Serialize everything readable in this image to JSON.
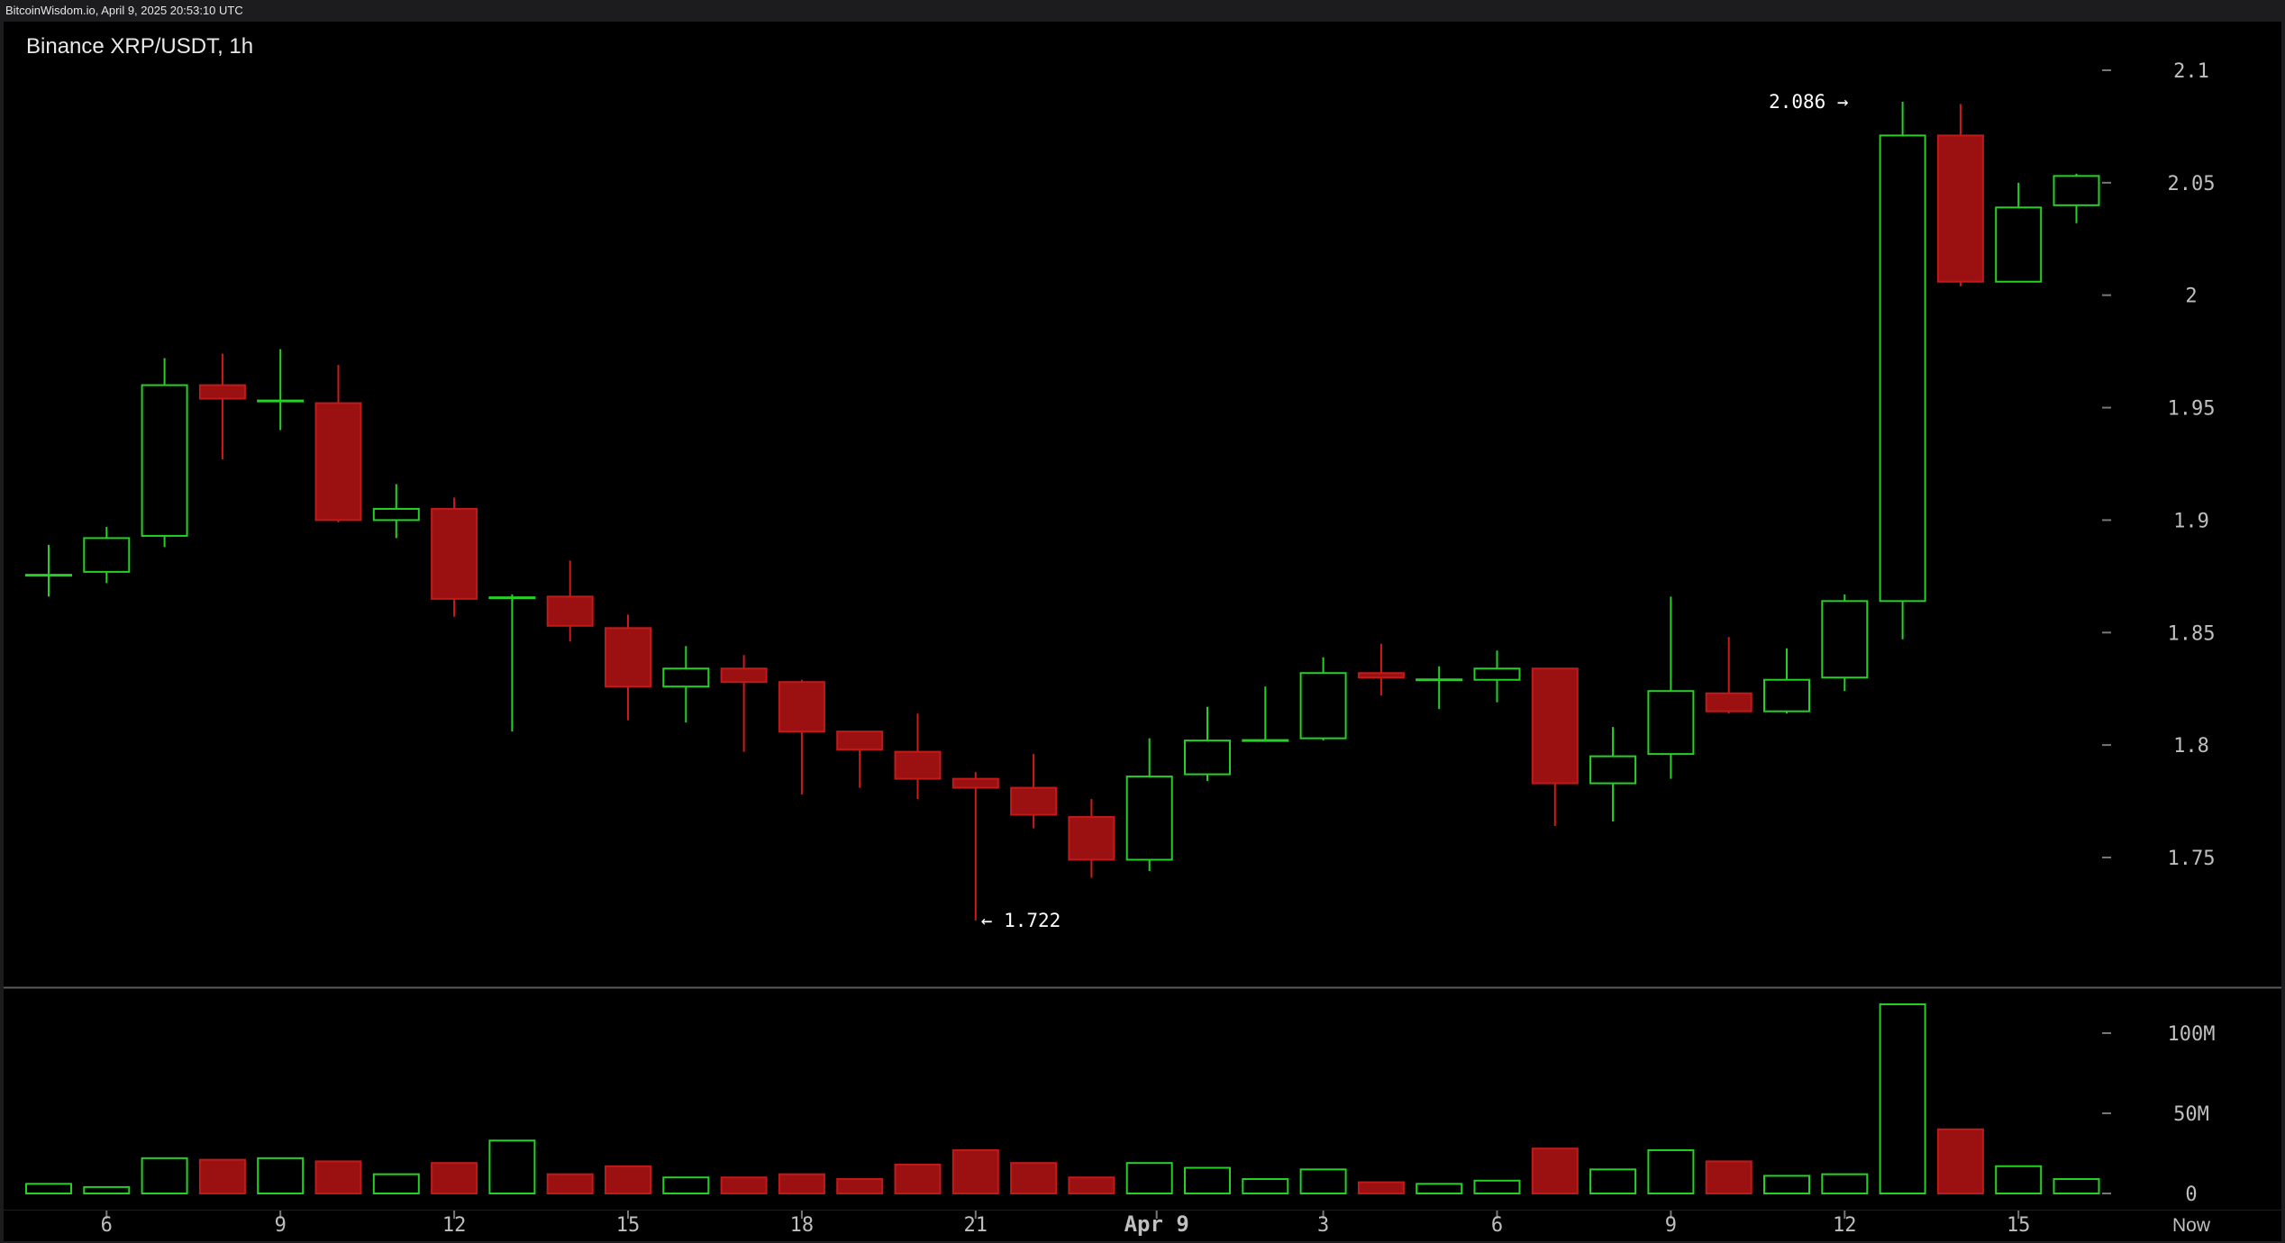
{
  "watermark": "BitcoinWisdom.io, April 9, 2025 20:53:10 UTC",
  "chart_data": {
    "type": "candlestick",
    "title": "Binance XRP/USDT, 1h",
    "price_axis": {
      "ticks": [
        "2.1",
        "2.05",
        "2",
        "1.95",
        "1.9",
        "1.85",
        "1.8",
        "1.75"
      ],
      "tick_values": [
        2.1,
        2.05,
        2.0,
        1.95,
        1.9,
        1.85,
        1.8,
        1.75
      ],
      "range": [
        1.67,
        2.125
      ]
    },
    "volume_axis": {
      "ticks": [
        "100M",
        "50M",
        "0"
      ],
      "tick_values": [
        100,
        50,
        0
      ],
      "unit": "M",
      "range": [
        0,
        120
      ]
    },
    "x_axis": {
      "labels": [
        {
          "label": "6",
          "index": 1
        },
        {
          "label": "9",
          "index": 4
        },
        {
          "label": "12",
          "index": 7
        },
        {
          "label": "15",
          "index": 10
        },
        {
          "label": "18",
          "index": 13
        },
        {
          "label": "21",
          "index": 16
        },
        {
          "label": "Apr 9",
          "index": 19,
          "bold": true
        },
        {
          "label": "3",
          "index": 22
        },
        {
          "label": "6",
          "index": 25
        },
        {
          "label": "9",
          "index": 28
        },
        {
          "label": "12",
          "index": 31
        },
        {
          "label": "15",
          "index": 34
        }
      ],
      "now_label": "Now"
    },
    "annotations": {
      "high": {
        "text": "2.086 →",
        "value": 2.086,
        "index": 32
      },
      "low": {
        "text": "← 1.722",
        "value": 1.722,
        "index": 16
      }
    },
    "candles": [
      {
        "o": 1.875,
        "h": 1.889,
        "l": 1.866,
        "c": 1.876,
        "v": 6
      },
      {
        "o": 1.877,
        "h": 1.897,
        "l": 1.872,
        "c": 1.892,
        "v": 4
      },
      {
        "o": 1.893,
        "h": 1.972,
        "l": 1.888,
        "c": 1.96,
        "v": 22
      },
      {
        "o": 1.96,
        "h": 1.974,
        "l": 1.927,
        "c": 1.954,
        "v": 21
      },
      {
        "o": 1.953,
        "h": 1.976,
        "l": 1.94,
        "c": 1.953,
        "v": 22
      },
      {
        "o": 1.952,
        "h": 1.969,
        "l": 1.899,
        "c": 1.9,
        "v": 20
      },
      {
        "o": 1.9,
        "h": 1.916,
        "l": 1.892,
        "c": 1.905,
        "v": 12
      },
      {
        "o": 1.905,
        "h": 1.91,
        "l": 1.857,
        "c": 1.865,
        "v": 19
      },
      {
        "o": 1.865,
        "h": 1.867,
        "l": 1.806,
        "c": 1.866,
        "v": 33
      },
      {
        "o": 1.866,
        "h": 1.882,
        "l": 1.846,
        "c": 1.853,
        "v": 12
      },
      {
        "o": 1.852,
        "h": 1.858,
        "l": 1.811,
        "c": 1.826,
        "v": 17
      },
      {
        "o": 1.826,
        "h": 1.844,
        "l": 1.81,
        "c": 1.834,
        "v": 10
      },
      {
        "o": 1.834,
        "h": 1.84,
        "l": 1.797,
        "c": 1.828,
        "v": 10
      },
      {
        "o": 1.828,
        "h": 1.829,
        "l": 1.778,
        "c": 1.806,
        "v": 12
      },
      {
        "o": 1.806,
        "h": 1.806,
        "l": 1.781,
        "c": 1.798,
        "v": 9
      },
      {
        "o": 1.797,
        "h": 1.814,
        "l": 1.776,
        "c": 1.785,
        "v": 18
      },
      {
        "o": 1.785,
        "h": 1.788,
        "l": 1.722,
        "c": 1.781,
        "v": 27
      },
      {
        "o": 1.781,
        "h": 1.796,
        "l": 1.763,
        "c": 1.769,
        "v": 19
      },
      {
        "o": 1.768,
        "h": 1.776,
        "l": 1.741,
        "c": 1.749,
        "v": 10
      },
      {
        "o": 1.749,
        "h": 1.803,
        "l": 1.744,
        "c": 1.786,
        "v": 19
      },
      {
        "o": 1.787,
        "h": 1.817,
        "l": 1.784,
        "c": 1.802,
        "v": 16
      },
      {
        "o": 1.802,
        "h": 1.826,
        "l": 1.802,
        "c": 1.802,
        "v": 9
      },
      {
        "o": 1.803,
        "h": 1.839,
        "l": 1.802,
        "c": 1.832,
        "v": 15
      },
      {
        "o": 1.832,
        "h": 1.845,
        "l": 1.822,
        "c": 1.83,
        "v": 7
      },
      {
        "o": 1.829,
        "h": 1.835,
        "l": 1.816,
        "c": 1.829,
        "v": 6
      },
      {
        "o": 1.829,
        "h": 1.842,
        "l": 1.819,
        "c": 1.834,
        "v": 8
      },
      {
        "o": 1.834,
        "h": 1.834,
        "l": 1.764,
        "c": 1.783,
        "v": 28
      },
      {
        "o": 1.783,
        "h": 1.808,
        "l": 1.766,
        "c": 1.795,
        "v": 15
      },
      {
        "o": 1.796,
        "h": 1.866,
        "l": 1.785,
        "c": 1.824,
        "v": 27
      },
      {
        "o": 1.823,
        "h": 1.848,
        "l": 1.814,
        "c": 1.815,
        "v": 20
      },
      {
        "o": 1.815,
        "h": 1.843,
        "l": 1.814,
        "c": 1.829,
        "v": 11
      },
      {
        "o": 1.83,
        "h": 1.867,
        "l": 1.824,
        "c": 1.864,
        "v": 12
      },
      {
        "o": 1.864,
        "h": 2.086,
        "l": 1.847,
        "c": 2.071,
        "v": 118
      },
      {
        "o": 2.071,
        "h": 2.085,
        "l": 2.004,
        "c": 2.006,
        "v": 40
      },
      {
        "o": 2.006,
        "h": 2.05,
        "l": 2.006,
        "c": 2.039,
        "v": 17
      },
      {
        "o": 2.04,
        "h": 2.054,
        "l": 2.032,
        "c": 2.053,
        "v": 9
      }
    ],
    "colors": {
      "up": "#26d026",
      "down": "#9b1111",
      "down_border": "#c01a1a",
      "background": "#000000",
      "text": "#bfbfbf"
    },
    "grid": false,
    "legend": "none"
  }
}
